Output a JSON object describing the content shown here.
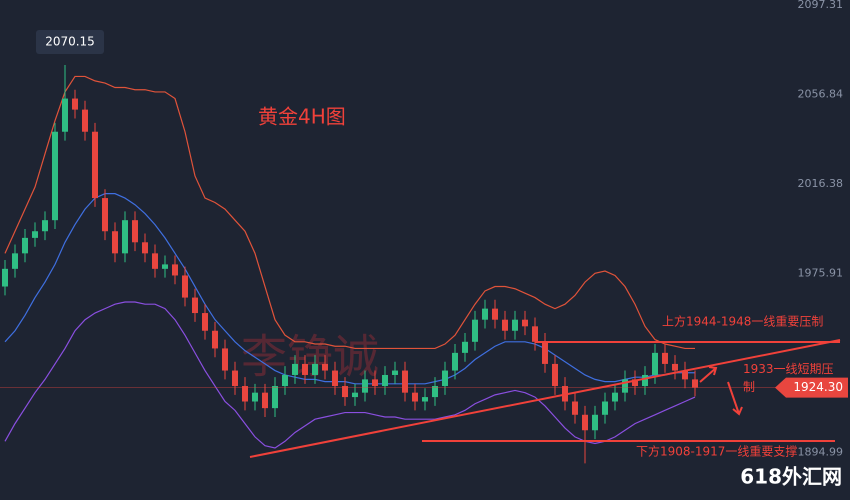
{
  "chart_data": {
    "type": "candlestick",
    "title": "黄金4H图",
    "watermark": "李铮诚",
    "logo": "618外汇网",
    "annotations": [
      "上方1944-1948一线重要压制",
      "1933一线短期压制",
      "下方1908-1917一线重要支撑"
    ],
    "up_color": "#2fbf84",
    "down_color": "#e8463f",
    "ylim": [
      1873.46,
      2099.57
    ],
    "yticks": [
      2097.31,
      2056.84,
      2016.38,
      1975.91,
      1894.99
    ],
    "grid": false,
    "last_price": {
      "value": 1924.3,
      "label": "1924.30"
    },
    "open": [
      1970,
      1978,
      1985,
      1992,
      1995,
      2000,
      2040,
      2055,
      2050,
      2040,
      2010,
      1995,
      1985,
      2000,
      1990,
      1985,
      1978,
      1980,
      1975,
      1965,
      1958,
      1950,
      1942,
      1932,
      1925,
      1918,
      1922,
      1915,
      1925,
      1930,
      1935,
      1930,
      1935,
      1932,
      1925,
      1920,
      1922,
      1928,
      1925,
      1930,
      1932,
      1922,
      1918,
      1920,
      1925,
      1932,
      1940,
      1945,
      1955,
      1960,
      1955,
      1950,
      1955,
      1952,
      1945,
      1935,
      1925,
      1918,
      1912,
      1905,
      1912,
      1918,
      1922,
      1928,
      1925,
      1930,
      1940,
      1935,
      1932,
      1928
    ],
    "high": [
      1982,
      1989,
      1996,
      1999,
      2004,
      2044,
      2070.15,
      2059,
      2054,
      2044,
      2014,
      1999,
      2004,
      2004,
      1994,
      1989,
      1984,
      1984,
      1979,
      1969,
      1962,
      1954,
      1946,
      1936,
      1929,
      1926,
      1926,
      1929,
      1934,
      1939,
      1939,
      1939,
      1939,
      1936,
      1929,
      1926,
      1932,
      1932,
      1934,
      1936,
      1936,
      1926,
      1924,
      1929,
      1936,
      1944,
      1949,
      1959,
      1964,
      1964,
      1959,
      1959,
      1959,
      1956,
      1949,
      1939,
      1929,
      1922,
      1916,
      1916,
      1922,
      1926,
      1932,
      1932,
      1934,
      1944,
      1944,
      1939,
      1936,
      1932
    ],
    "low": [
      1966,
      1974,
      1981,
      1988,
      1991,
      1996,
      2036,
      2046,
      2036,
      2006,
      1991,
      1981,
      1981,
      1986,
      1981,
      1974,
      1974,
      1971,
      1961,
      1954,
      1946,
      1938,
      1928,
      1921,
      1914,
      1914,
      1911,
      1911,
      1921,
      1926,
      1926,
      1926,
      1928,
      1921,
      1916,
      1916,
      1918,
      1921,
      1921,
      1926,
      1918,
      1914,
      1914,
      1916,
      1921,
      1928,
      1936,
      1941,
      1951,
      1951,
      1946,
      1946,
      1948,
      1941,
      1931,
      1921,
      1914,
      1908,
      1890,
      1901,
      1908,
      1914,
      1918,
      1921,
      1921,
      1926,
      1931,
      1928,
      1924,
      1920.3
    ],
    "close": [
      1978,
      1985,
      1992,
      1995,
      2000,
      2040,
      2055,
      2050,
      2040,
      2010,
      1995,
      1985,
      2000,
      1990,
      1985,
      1978,
      1980,
      1975,
      1965,
      1958,
      1950,
      1942,
      1932,
      1925,
      1918,
      1922,
      1915,
      1925,
      1930,
      1935,
      1930,
      1935,
      1932,
      1925,
      1920,
      1922,
      1928,
      1925,
      1930,
      1932,
      1922,
      1918,
      1920,
      1925,
      1932,
      1940,
      1945,
      1955,
      1960,
      1955,
      1950,
      1955,
      1952,
      1945,
      1935,
      1925,
      1918,
      1912,
      1905,
      1912,
      1918,
      1922,
      1928,
      1925,
      1930,
      1940,
      1935,
      1932,
      1928,
      1924.3
    ],
    "series": [
      {
        "color": "#e0533a",
        "values": [
          1985,
          1995,
          2005,
          2015,
          2030,
          2045,
          2058,
          2065,
          2065,
          2063,
          2062,
          2060,
          2060,
          2059,
          2059,
          2058,
          2058,
          2055,
          2040,
          2020,
          2010,
          2008,
          2005,
          2000,
          1995,
          1985,
          1970,
          1955,
          1948,
          1945,
          1945,
          1944,
          1944,
          1943,
          1943,
          1942,
          1942,
          1942,
          1942,
          1942,
          1942,
          1942,
          1942,
          1942,
          1944,
          1948,
          1955,
          1962,
          1968,
          1970,
          1970,
          1969,
          1967,
          1965,
          1962,
          1960,
          1962,
          1966,
          1972,
          1976,
          1977,
          1975,
          1970,
          1962,
          1952,
          1946,
          1944,
          1943,
          1942,
          1942
        ]
      },
      {
        "color": "#3f6fe0",
        "values": [
          1945,
          1950,
          1957,
          1965,
          1972,
          1980,
          1990,
          1998,
          2005,
          2010,
          2012,
          2012,
          2010,
          2007,
          2003,
          1998,
          1992,
          1985,
          1978,
          1970,
          1962,
          1955,
          1950,
          1945,
          1941,
          1938,
          1935,
          1932,
          1930,
          1929,
          1928,
          1928,
          1927,
          1927,
          1927,
          1926,
          1926,
          1926,
          1926,
          1926,
          1926,
          1926,
          1926,
          1927,
          1928,
          1930,
          1933,
          1937,
          1940,
          1943,
          1945,
          1945,
          1945,
          1944,
          1942,
          1939,
          1936,
          1933,
          1930,
          1928,
          1927,
          1927,
          1928,
          1929,
          1929,
          1930,
          1930,
          1931,
          1931,
          1931
        ]
      },
      {
        "color": "#8a4fe0",
        "values": [
          1900,
          1908,
          1915,
          1922,
          1928,
          1935,
          1942,
          1950,
          1955,
          1958,
          1960,
          1962,
          1963,
          1963,
          1962,
          1962,
          1960,
          1955,
          1948,
          1940,
          1932,
          1925,
          1918,
          1914,
          1908,
          1902,
          1898,
          1897,
          1900,
          1904,
          1907,
          1910,
          1911,
          1912,
          1913,
          1913,
          1913,
          1912,
          1911,
          1911,
          1910,
          1910,
          1910,
          1910,
          1911,
          1912,
          1914,
          1917,
          1919,
          1921,
          1922,
          1923,
          1922,
          1920,
          1916,
          1911,
          1906,
          1902,
          1900,
          1899,
          1900,
          1902,
          1905,
          1908,
          1910,
          1912,
          1914,
          1916,
          1918,
          1920
        ]
      }
    ]
  }
}
